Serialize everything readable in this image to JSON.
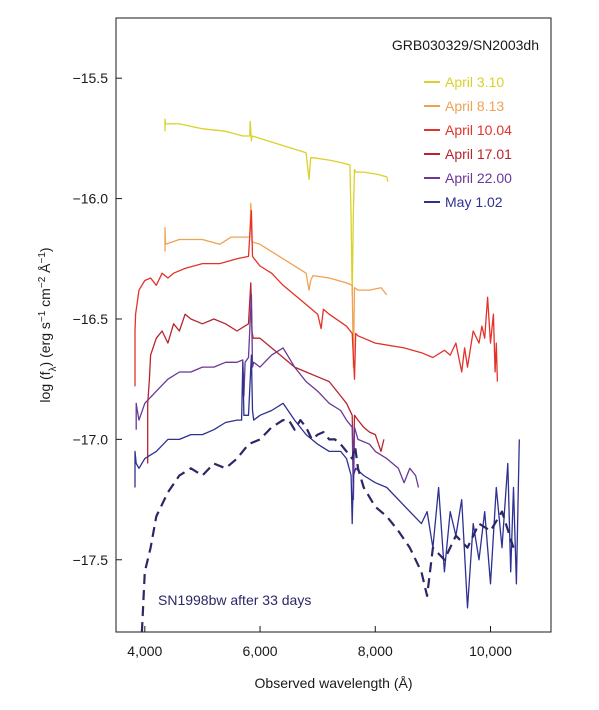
{
  "chart_data": {
    "type": "line",
    "title": "GRB030329/SN2003dh",
    "xlabel": "Observed wavelength (Å)",
    "ylabel": "log (fλ) (erg s⁻¹ cm⁻² Å⁻¹)",
    "ylabel_parts": {
      "pre": "log (f",
      "sub": "λ",
      "mid1": ") (erg s",
      "sup1": "−1",
      "mid2": " cm",
      "sup2": "−2",
      "mid3": " Å",
      "sup3": "−1",
      "post": ")"
    },
    "xlim": [
      3500,
      11050
    ],
    "ylim": [
      -17.8,
      -15.25
    ],
    "x_ticks": [
      4000,
      6000,
      8000,
      10000
    ],
    "x_tick_labels": [
      "4,000",
      "6,000",
      "8,000",
      "10,000"
    ],
    "y_ticks": [
      -15.5,
      -16.0,
      -16.5,
      -17.0,
      -17.5
    ],
    "y_tick_labels": [
      "−15.5",
      "−16.0",
      "−16.5",
      "−17.0",
      "−17.5"
    ],
    "grid": false,
    "legend_position": "top-right",
    "annotation": "SN1998bw after 33 days",
    "annotation_color": "#2b2766",
    "series": [
      {
        "name": "April 3.10",
        "color": "#d8d22a",
        "x": [
          4350,
          4350,
          4360,
          4600,
          5000,
          5400,
          5700,
          5820,
          5830,
          5850,
          5860,
          6000,
          6400,
          6800,
          6850,
          6880,
          6920,
          7200,
          7400,
          7560,
          7580,
          7600,
          7620,
          7640,
          7660,
          7800,
          8050,
          8200,
          8220
        ],
        "values": [
          -15.72,
          -15.67,
          -15.69,
          -15.69,
          -15.71,
          -15.72,
          -15.74,
          -15.74,
          -15.68,
          -15.76,
          -15.74,
          -15.75,
          -15.78,
          -15.81,
          -15.92,
          -15.83,
          -15.83,
          -15.84,
          -15.85,
          -15.86,
          -16.08,
          -16.4,
          -16.05,
          -15.88,
          -15.89,
          -15.89,
          -15.9,
          -15.91,
          -15.93
        ]
      },
      {
        "name": "April 8.13",
        "color": "#f0a253",
        "x": [
          4350,
          4350,
          4360,
          4600,
          5000,
          5300,
          5500,
          5700,
          5820,
          5840,
          5860,
          6000,
          6400,
          6800,
          6850,
          6880,
          6920,
          7200,
          7500,
          7600,
          7620,
          7640,
          7700,
          7900,
          8100,
          8200
        ],
        "values": [
          -16.22,
          -16.12,
          -16.19,
          -16.17,
          -16.17,
          -16.19,
          -16.16,
          -16.16,
          -16.16,
          -16.02,
          -16.18,
          -16.19,
          -16.25,
          -16.31,
          -16.38,
          -16.34,
          -16.32,
          -16.33,
          -16.35,
          -16.36,
          -16.7,
          -16.37,
          -16.38,
          -16.38,
          -16.37,
          -16.4
        ]
      },
      {
        "name": "April 10.04",
        "color": "#e3322a",
        "x": [
          3830,
          3830,
          3840,
          3900,
          4000,
          4100,
          4200,
          4300,
          4400,
          4500,
          4700,
          5000,
          5300,
          5600,
          5800,
          5850,
          5870,
          5900,
          6000,
          6200,
          6400,
          6600,
          6800,
          7000,
          7060,
          7100,
          7200,
          7500,
          7600,
          7640,
          7660,
          7700,
          8000,
          8500,
          8800,
          9000,
          9200,
          9300,
          9400,
          9500,
          9550,
          9600,
          9700,
          9800,
          9850,
          9900,
          9950,
          10000,
          10050,
          10080,
          10100,
          10120
        ],
        "values": [
          -16.78,
          -16.55,
          -16.48,
          -16.38,
          -16.34,
          -16.33,
          -16.36,
          -16.31,
          -16.33,
          -16.31,
          -16.29,
          -16.27,
          -16.27,
          -16.25,
          -16.24,
          -16.05,
          -16.24,
          -16.25,
          -16.28,
          -16.31,
          -16.36,
          -16.4,
          -16.44,
          -16.48,
          -16.54,
          -16.46,
          -16.48,
          -16.53,
          -16.56,
          -16.75,
          -16.56,
          -16.57,
          -16.6,
          -16.62,
          -16.64,
          -16.66,
          -16.63,
          -16.65,
          -16.6,
          -16.72,
          -16.62,
          -16.7,
          -16.55,
          -16.6,
          -16.53,
          -16.58,
          -16.41,
          -16.6,
          -16.48,
          -16.72,
          -16.6,
          -16.76
        ]
      },
      {
        "name": "April 17.01",
        "color": "#b8242e",
        "x": [
          4050,
          4050,
          4080,
          4100,
          4200,
          4300,
          4400,
          4500,
          4600,
          4700,
          4800,
          5000,
          5200,
          5400,
          5600,
          5800,
          5840,
          5860,
          5880,
          6000,
          6200,
          6400,
          6600,
          6800,
          7000,
          7200,
          7400,
          7500,
          7600,
          7620,
          7640,
          7700,
          7800,
          7900,
          8000,
          8100,
          8150
        ],
        "values": [
          -17.1,
          -16.85,
          -16.75,
          -16.65,
          -16.58,
          -16.55,
          -16.6,
          -16.52,
          -16.55,
          -16.48,
          -16.5,
          -16.52,
          -16.5,
          -16.52,
          -16.55,
          -16.52,
          -16.35,
          -16.55,
          -16.58,
          -16.58,
          -16.62,
          -16.66,
          -16.7,
          -16.72,
          -16.74,
          -16.76,
          -16.82,
          -16.85,
          -16.9,
          -17.15,
          -16.9,
          -16.92,
          -16.95,
          -16.97,
          -16.98,
          -17.05,
          -17.0
        ]
      },
      {
        "name": "April 22.00",
        "color": "#6a3895",
        "x": [
          3850,
          3850,
          3870,
          3900,
          4000,
          4200,
          4400,
          4600,
          4800,
          5000,
          5200,
          5400,
          5600,
          5700,
          5720,
          5740,
          5800,
          5850,
          5870,
          5890,
          6000,
          6200,
          6400,
          6600,
          6800,
          7000,
          7200,
          7400,
          7500,
          7600,
          7620,
          7640,
          7700,
          7900,
          8000,
          8200,
          8400,
          8500,
          8600,
          8700,
          8750
        ],
        "values": [
          -16.96,
          -16.85,
          -16.88,
          -16.92,
          -16.85,
          -16.8,
          -16.75,
          -16.72,
          -16.72,
          -16.7,
          -16.7,
          -16.68,
          -16.68,
          -16.67,
          -16.82,
          -16.68,
          -16.66,
          -16.4,
          -16.7,
          -16.68,
          -16.7,
          -16.65,
          -16.62,
          -16.7,
          -16.76,
          -16.8,
          -16.85,
          -16.88,
          -16.92,
          -16.95,
          -17.25,
          -16.95,
          -17.0,
          -17.02,
          -17.05,
          -17.08,
          -17.12,
          -17.18,
          -17.12,
          -17.15,
          -17.2
        ]
      },
      {
        "name": "May 1.02",
        "color": "#2e3192",
        "x": [
          3830,
          3830,
          3850,
          3900,
          4000,
          4200,
          4400,
          4600,
          4800,
          5000,
          5200,
          5400,
          5600,
          5680,
          5700,
          5720,
          5800,
          5850,
          5870,
          5890,
          6000,
          6200,
          6400,
          6600,
          6800,
          7000,
          7200,
          7400,
          7500,
          7580,
          7600,
          7620,
          7660,
          7800,
          8000,
          8200,
          8400,
          8600,
          8800,
          8900,
          9000,
          9100,
          9200,
          9300,
          9400,
          9500,
          9600,
          9700,
          9800,
          9900,
          10000,
          10100,
          10200,
          10300,
          10350,
          10400,
          10450,
          10500
        ],
        "values": [
          -17.2,
          -17.05,
          -17.1,
          -17.12,
          -17.08,
          -17.05,
          -17.0,
          -17.0,
          -16.98,
          -16.98,
          -16.96,
          -16.93,
          -16.92,
          -16.92,
          -16.68,
          -16.9,
          -16.9,
          -16.65,
          -16.88,
          -16.92,
          -16.9,
          -16.88,
          -16.85,
          -16.92,
          -16.98,
          -17.02,
          -17.05,
          -17.05,
          -17.08,
          -17.15,
          -17.35,
          -17.15,
          -17.12,
          -17.15,
          -17.18,
          -17.2,
          -17.25,
          -17.3,
          -17.35,
          -17.3,
          -17.45,
          -17.2,
          -17.55,
          -17.3,
          -17.4,
          -17.25,
          -17.7,
          -17.35,
          -17.5,
          -17.3,
          -17.6,
          -17.2,
          -17.45,
          -17.1,
          -17.55,
          -17.2,
          -17.6,
          -17.0
        ]
      },
      {
        "name": "",
        "color": "#2b2766",
        "dashed": true,
        "x": [
          3950,
          4000,
          4100,
          4200,
          4400,
          4600,
          4800,
          5000,
          5200,
          5400,
          5600,
          5800,
          6000,
          6200,
          6400,
          6500,
          6600,
          6700,
          6800,
          6900,
          7000,
          7100,
          7200,
          7300,
          7400,
          7500,
          7600,
          7650,
          7700,
          7800,
          8000,
          8200,
          8400,
          8600,
          8800,
          8900,
          9000,
          9200,
          9400,
          9600,
          9800,
          10000,
          10200,
          10400
        ],
        "values": [
          -17.8,
          -17.55,
          -17.45,
          -17.32,
          -17.22,
          -17.15,
          -17.12,
          -17.15,
          -17.1,
          -17.12,
          -17.08,
          -17.02,
          -17.0,
          -16.95,
          -16.92,
          -16.92,
          -16.96,
          -16.92,
          -16.95,
          -17.0,
          -16.98,
          -16.97,
          -17.0,
          -17.0,
          -17.02,
          -17.05,
          -17.08,
          -17.03,
          -17.12,
          -17.2,
          -17.28,
          -17.32,
          -17.38,
          -17.45,
          -17.55,
          -17.65,
          -17.45,
          -17.5,
          -17.4,
          -17.45,
          -17.35,
          -17.38,
          -17.3,
          -17.45
        ]
      }
    ]
  }
}
